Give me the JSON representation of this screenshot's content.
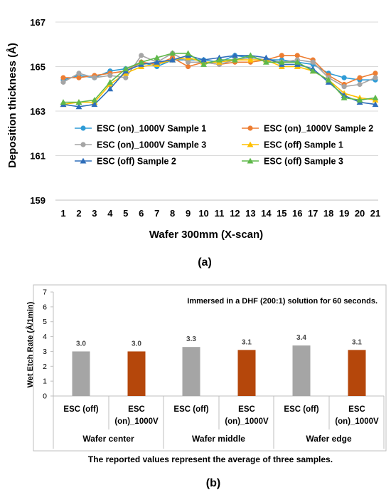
{
  "chart_data": [
    {
      "type": "line",
      "ylabel": "Deposition thickness (Å)",
      "xlabel": "Wafer 300mm (X-scan)",
      "panel_label": "(a)",
      "ylim": [
        159,
        167
      ],
      "yticks": [
        "159",
        "161",
        "163",
        "165",
        "167"
      ],
      "x": [
        "1",
        "2",
        "3",
        "4",
        "5",
        "6",
        "7",
        "8",
        "9",
        "10",
        "11",
        "12",
        "13",
        "14",
        "15",
        "16",
        "17",
        "18",
        "19",
        "20",
        "21"
      ],
      "legend_position": "lower-center",
      "series": [
        {
          "name": "ESC (on)_1000V Sample 1",
          "color": "#2E9BD6",
          "marker": "circle",
          "values": [
            164.4,
            164.6,
            164.5,
            164.8,
            164.9,
            165.2,
            165.0,
            165.3,
            165.3,
            165.3,
            165.2,
            165.5,
            165.4,
            165.3,
            165.3,
            165.2,
            165.1,
            164.7,
            164.5,
            164.4,
            164.4
          ]
        },
        {
          "name": "ESC (on)_1000V Sample 2",
          "color": "#ED7D31",
          "marker": "circle",
          "values": [
            164.5,
            164.5,
            164.6,
            164.7,
            164.8,
            165.2,
            165.1,
            165.4,
            165.0,
            165.2,
            165.1,
            165.2,
            165.2,
            165.3,
            165.5,
            165.5,
            165.3,
            164.6,
            164.2,
            164.5,
            164.7
          ]
        },
        {
          "name": "ESC (on)_1000V Sample 3",
          "color": "#A5A5A5",
          "marker": "circle",
          "values": [
            164.3,
            164.7,
            164.5,
            164.6,
            164.5,
            165.5,
            165.2,
            165.6,
            165.2,
            165.2,
            165.1,
            165.3,
            165.4,
            165.3,
            165.2,
            165.3,
            165.2,
            164.5,
            164.1,
            164.2,
            164.5
          ]
        },
        {
          "name": "ESC (off) Sample 1",
          "color": "#FFC000",
          "marker": "triangle",
          "values": [
            163.3,
            163.4,
            163.4,
            164.2,
            164.7,
            165.0,
            165.1,
            165.3,
            165.4,
            165.2,
            165.2,
            165.3,
            165.3,
            165.3,
            165.0,
            165.0,
            164.8,
            164.4,
            163.8,
            163.6,
            163.5
          ]
        },
        {
          "name": "ESC (off) Sample 2",
          "color": "#2F6EBA",
          "marker": "triangle",
          "values": [
            163.3,
            163.2,
            163.3,
            164.0,
            164.8,
            165.1,
            165.2,
            165.3,
            165.5,
            165.3,
            165.4,
            165.5,
            165.5,
            165.4,
            165.1,
            165.1,
            164.9,
            164.3,
            163.7,
            163.4,
            163.3
          ]
        },
        {
          "name": "ESC (off) Sample 3",
          "color": "#5FB84A",
          "marker": "triangle",
          "values": [
            163.4,
            163.4,
            163.5,
            164.3,
            164.9,
            165.2,
            165.4,
            165.6,
            165.6,
            165.1,
            165.3,
            165.3,
            165.5,
            165.2,
            165.2,
            165.2,
            164.8,
            164.4,
            163.6,
            163.5,
            163.6
          ]
        }
      ]
    },
    {
      "type": "bar",
      "ylabel": "Wet Etch Rate (Å/1min)",
      "panel_label": "(b)",
      "ylim": [
        0,
        7
      ],
      "yticks": [
        "0",
        "1",
        "2",
        "3",
        "4",
        "5",
        "6",
        "7"
      ],
      "annotation": "Immersed in a DHF (200:1) solution for 60 seconds.",
      "note": "The reported values represent the average of three samples.",
      "groups": [
        {
          "name": "Wafer center",
          "bars": [
            {
              "label": "ESC (off)",
              "value": 3.0,
              "data_label": "3.0",
              "color": "#A5A5A5"
            },
            {
              "label": "ESC (on)_1000V",
              "value": 3.0,
              "data_label": "3.0",
              "color": "#B5470B"
            }
          ]
        },
        {
          "name": "Wafer middle",
          "bars": [
            {
              "label": "ESC (off)",
              "value": 3.3,
              "data_label": "3.3",
              "color": "#A5A5A5"
            },
            {
              "label": "ESC (on)_1000V",
              "value": 3.1,
              "data_label": "3.1",
              "color": "#B5470B"
            }
          ]
        },
        {
          "name": "Wafer edge",
          "bars": [
            {
              "label": "ESC (off)",
              "value": 3.4,
              "data_label": "3.4",
              "color": "#A5A5A5"
            },
            {
              "label": "ESC (on)_1000V",
              "value": 3.1,
              "data_label": "3.1",
              "color": "#B5470B"
            }
          ]
        }
      ],
      "grid": false
    }
  ]
}
